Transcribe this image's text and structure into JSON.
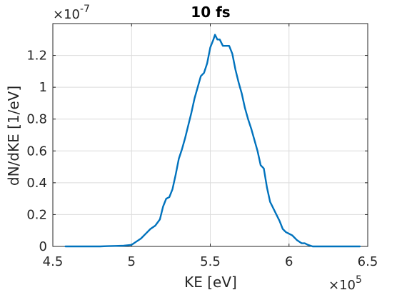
{
  "chart_data": {
    "type": "line",
    "title": "10 fs",
    "xlabel": "KE [eV]",
    "ylabel": "dN/dKE [1/eV]",
    "xlim": [
      4.5,
      6.5
    ],
    "ylim": [
      0,
      1.4
    ],
    "x_scale_exponent": "5",
    "y_scale_exponent": "-7",
    "x_multiplier_symbol": "×10",
    "y_multiplier_symbol": "×10",
    "x_ticks": [
      4.5,
      5,
      5.5,
      6,
      6.5
    ],
    "x_tick_labels": [
      "4.5",
      "5",
      "5.5",
      "6",
      "6.5"
    ],
    "y_ticks": [
      0,
      0.2,
      0.4,
      0.6,
      0.8,
      1,
      1.2
    ],
    "y_tick_labels": [
      "0",
      "0.2",
      "0.4",
      "0.6",
      "0.8",
      "1",
      "1.2"
    ],
    "grid": true,
    "line_color": "#0072BD",
    "series": [
      {
        "x": [
          4.58,
          4.7,
          4.8,
          4.85,
          4.9,
          4.95,
          5.0,
          5.03,
          5.06,
          5.09,
          5.12,
          5.15,
          5.18,
          5.2,
          5.22,
          5.24,
          5.26,
          5.28,
          5.3,
          5.32,
          5.34,
          5.36,
          5.38,
          5.4,
          5.42,
          5.44,
          5.46,
          5.48,
          5.5,
          5.52,
          5.53,
          5.545,
          5.56,
          5.58,
          5.6,
          5.62,
          5.64,
          5.66,
          5.68,
          5.7,
          5.72,
          5.74,
          5.76,
          5.78,
          5.8,
          5.82,
          5.84,
          5.86,
          5.88,
          5.9,
          5.92,
          5.94,
          5.96,
          5.98,
          6.0,
          6.02,
          6.05,
          6.08,
          6.1,
          6.12,
          6.15,
          6.2,
          6.25,
          6.3,
          6.4,
          6.45
        ],
        "y": [
          0.0,
          0.0,
          0.0,
          0.002,
          0.003,
          0.005,
          0.01,
          0.03,
          0.05,
          0.08,
          0.11,
          0.13,
          0.17,
          0.25,
          0.3,
          0.31,
          0.36,
          0.45,
          0.55,
          0.61,
          0.68,
          0.76,
          0.84,
          0.93,
          1.0,
          1.07,
          1.09,
          1.15,
          1.25,
          1.3,
          1.33,
          1.3,
          1.3,
          1.26,
          1.26,
          1.26,
          1.21,
          1.11,
          1.03,
          0.96,
          0.87,
          0.8,
          0.74,
          0.67,
          0.6,
          0.51,
          0.49,
          0.37,
          0.28,
          0.24,
          0.2,
          0.16,
          0.11,
          0.09,
          0.08,
          0.07,
          0.04,
          0.02,
          0.02,
          0.01,
          0.0,
          0.0,
          0.0,
          0.0,
          0.0,
          0.0
        ]
      }
    ]
  }
}
